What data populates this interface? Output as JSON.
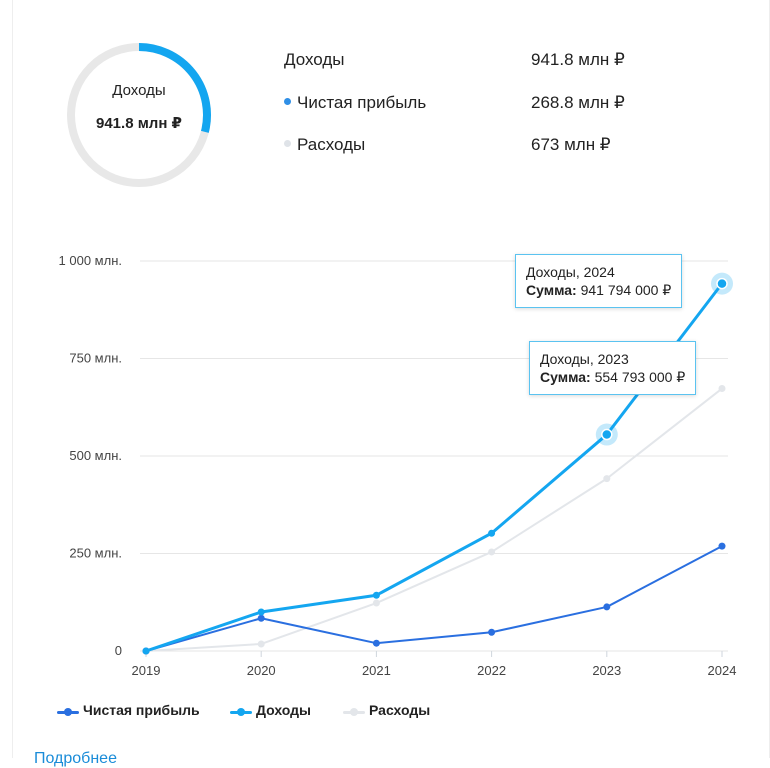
{
  "summary": {
    "donut_label": "Доходы",
    "donut_value": "941.8 млн ₽",
    "rows": [
      {
        "label": "Доходы",
        "value": "941.8 млн ₽",
        "color": ""
      },
      {
        "label": "Чистая прибыль",
        "value": "268.8 млн ₽",
        "color": "#2f8fe6"
      },
      {
        "label": "Расходы",
        "value": "673 млн ₽",
        "color": "#dfe3e8"
      }
    ],
    "donut_fraction": 0.29
  },
  "chart_data": {
    "type": "line",
    "categories": [
      "2019",
      "2020",
      "2021",
      "2022",
      "2023",
      "2024"
    ],
    "y_tick_labels": [
      "1 000 млн.",
      "750 млн.",
      "500 млн.",
      "250 млн.",
      "0"
    ],
    "y_tick_values": [
      1000,
      750,
      500,
      250,
      0
    ],
    "ylim": [
      0,
      1000
    ],
    "grid": true,
    "series": [
      {
        "name": "Чистая прибыль",
        "color": "#2a6fe0",
        "values": [
          0,
          84,
          20,
          48,
          113,
          269
        ]
      },
      {
        "name": "Доходы",
        "color": "#14a6f0",
        "values": [
          0,
          100,
          143,
          302,
          555,
          942
        ]
      },
      {
        "name": "Расходы",
        "color": "#e3e6ea",
        "values": [
          0,
          18,
          123,
          254,
          442,
          673
        ]
      }
    ],
    "tooltips": [
      {
        "title": "Доходы, 2024",
        "key": "Сумма:",
        "value": "941 794 000 ₽"
      },
      {
        "title": "Доходы, 2023",
        "key": "Сумма:",
        "value": "554 793 000 ₽"
      }
    ]
  },
  "footer": {
    "more_link": "Подробнее"
  }
}
